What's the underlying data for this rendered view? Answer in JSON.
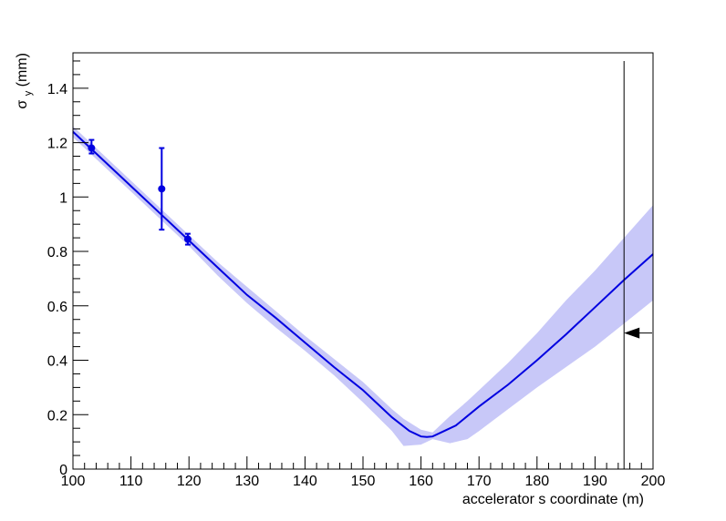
{
  "chart_data": {
    "type": "scatter",
    "title": "",
    "xlabel": "accelerator s coordinate (m)",
    "ylabel": {
      "symbol": "σ",
      "subscript": "y",
      "unit": "(mm)"
    },
    "xlim": [
      100,
      200
    ],
    "ylim": [
      0,
      1.53
    ],
    "x_ticks": [
      100,
      110,
      120,
      130,
      140,
      150,
      160,
      170,
      180,
      190,
      200
    ],
    "y_ticks": [
      0,
      0.2,
      0.4,
      0.6,
      0.8,
      1,
      1.2,
      1.4
    ],
    "x_tick_labels": [
      "100",
      "110",
      "120",
      "130",
      "140",
      "150",
      "160",
      "170",
      "180",
      "190",
      "200"
    ],
    "y_tick_labels": [
      "0",
      "0.2",
      "0.4",
      "0.6",
      "0.8",
      "1",
      "1.2",
      "1.4"
    ],
    "grid": false,
    "colors": {
      "fit": "#0000e0",
      "band": "#c8c8f8",
      "points": "#0000e0",
      "marker": "#000000"
    },
    "points": [
      {
        "x": 103.2,
        "y": 1.18,
        "yerr_low": 0.02,
        "yerr_high": 0.03
      },
      {
        "x": 115.3,
        "y": 1.03,
        "yerr_low": 0.15,
        "yerr_high": 0.15
      },
      {
        "x": 119.8,
        "y": 0.845,
        "yerr_low": 0.02,
        "yerr_high": 0.02
      }
    ],
    "fit_curve": {
      "x": [
        100,
        105,
        110,
        115,
        120,
        125,
        130,
        135,
        140,
        145,
        150,
        155,
        158,
        160,
        161,
        162,
        164,
        166,
        170,
        175,
        180,
        185,
        190,
        195,
        200
      ],
      "y": [
        1.24,
        1.14,
        1.04,
        0.94,
        0.84,
        0.74,
        0.64,
        0.555,
        0.465,
        0.375,
        0.29,
        0.19,
        0.14,
        0.12,
        0.118,
        0.12,
        0.14,
        0.16,
        0.23,
        0.31,
        0.4,
        0.495,
        0.595,
        0.695,
        0.79
      ]
    },
    "uncertainty_band": {
      "x": [
        100,
        105,
        110,
        115,
        120,
        125,
        130,
        135,
        140,
        145,
        150,
        155,
        157,
        160,
        162,
        165,
        168,
        170,
        175,
        180,
        185,
        190,
        195,
        200
      ],
      "upper": [
        1.26,
        1.16,
        1.06,
        0.96,
        0.86,
        0.76,
        0.67,
        0.58,
        0.49,
        0.405,
        0.32,
        0.22,
        0.185,
        0.145,
        0.135,
        0.195,
        0.25,
        0.29,
        0.39,
        0.5,
        0.62,
        0.73,
        0.85,
        0.97
      ],
      "lower": [
        1.22,
        1.12,
        1.02,
        0.92,
        0.82,
        0.71,
        0.61,
        0.52,
        0.435,
        0.345,
        0.245,
        0.14,
        0.085,
        0.09,
        0.11,
        0.095,
        0.11,
        0.14,
        0.22,
        0.3,
        0.375,
        0.45,
        0.535,
        0.62
      ]
    },
    "vertical_marker": {
      "x": 195,
      "y_top": 1.5
    },
    "arrow": {
      "y": 0.5,
      "x_from": 200,
      "x_to": 195
    }
  }
}
